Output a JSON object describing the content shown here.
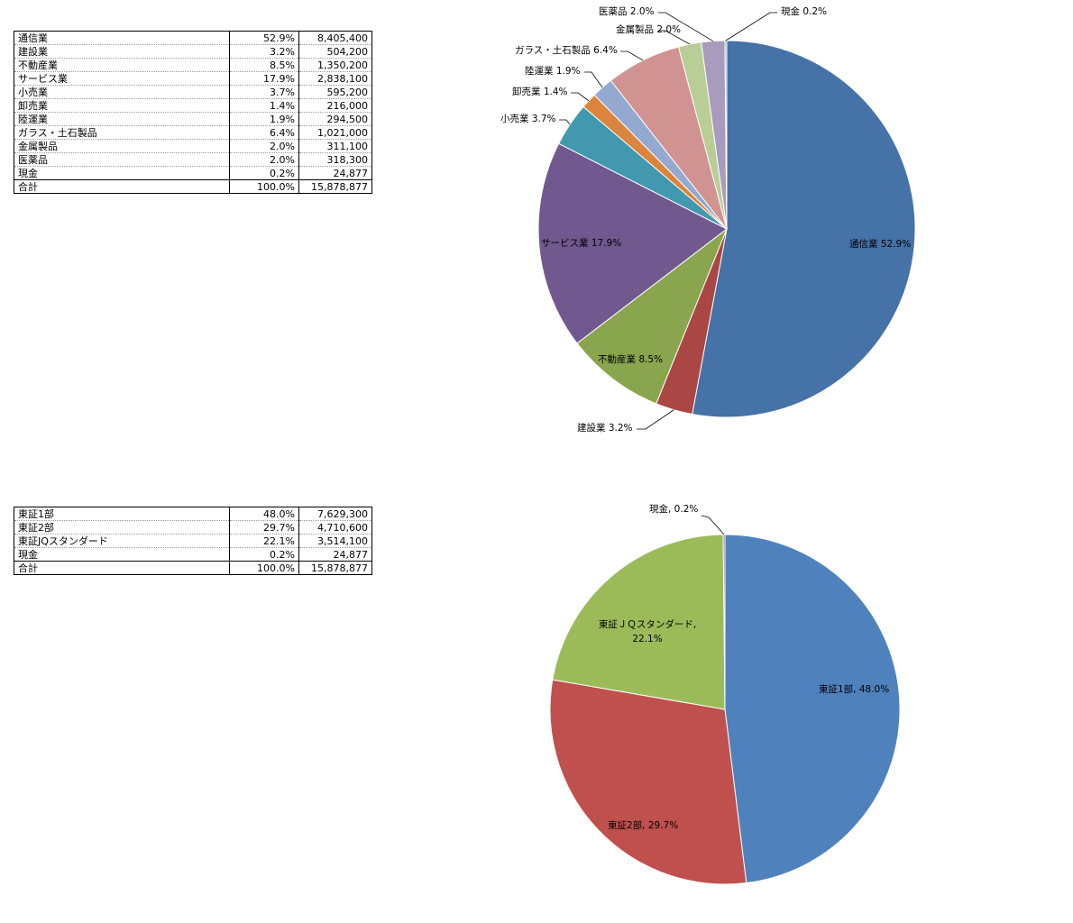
{
  "tables": [
    {
      "rows": [
        {
          "name": "通信業",
          "pct": "52.9%",
          "amount": "8,405,400"
        },
        {
          "name": "建設業",
          "pct": "3.2%",
          "amount": "504,200"
        },
        {
          "name": "不動産業",
          "pct": "8.5%",
          "amount": "1,350,200"
        },
        {
          "name": "サービス業",
          "pct": "17.9%",
          "amount": "2,838,100"
        },
        {
          "name": "小売業",
          "pct": "3.7%",
          "amount": "595,200"
        },
        {
          "name": "卸売業",
          "pct": "1.4%",
          "amount": "216,000"
        },
        {
          "name": "陸運業",
          "pct": "1.9%",
          "amount": "294,500"
        },
        {
          "name": "ガラス・土石製品",
          "pct": "6.4%",
          "amount": "1,021,000"
        },
        {
          "name": "金属製品",
          "pct": "2.0%",
          "amount": "311,100"
        },
        {
          "name": "医薬品",
          "pct": "2.0%",
          "amount": "318,300"
        },
        {
          "name": "現金",
          "pct": "0.2%",
          "amount": "24,877"
        }
      ],
      "total": {
        "name": "合計",
        "pct": "100.0%",
        "amount": "15,878,877"
      }
    },
    {
      "rows": [
        {
          "name": "東証1部",
          "pct": "48.0%",
          "amount": "7,629,300"
        },
        {
          "name": "東証2部",
          "pct": "29.7%",
          "amount": "4,710,600"
        },
        {
          "name": "東証JQスタンダード",
          "pct": "22.1%",
          "amount": "3,514,100"
        },
        {
          "name": "現金",
          "pct": "0.2%",
          "amount": "24,877"
        }
      ],
      "total": {
        "name": "合計",
        "pct": "100.0%",
        "amount": "15,878,877"
      }
    }
  ],
  "chart_data": [
    {
      "type": "pie",
      "categories": [
        "通信業",
        "建設業",
        "不動産業",
        "サービス業",
        "小売業",
        "卸売業",
        "陸運業",
        "ガラス・土石製品",
        "金属製品",
        "医薬品",
        "現金"
      ],
      "values": [
        8405400,
        504200,
        1350200,
        2838100,
        595200,
        216000,
        294500,
        1021000,
        311100,
        318300,
        24877
      ],
      "labels": [
        "通信業 52.9%",
        "建設業 3.2%",
        "不動産業 8.5%",
        "サービス業 17.9%",
        "小売業 3.7%",
        "卸売業 1.4%",
        "陸運業 1.9%",
        "ガラス・土石製品 6.4%",
        "金属製品 2.0%",
        "医薬品 2.0%",
        "現金 0.2%"
      ],
      "colors": [
        "#4572A7",
        "#AA4643",
        "#89A54E",
        "#71588F",
        "#4198AF",
        "#DB843D",
        "#93A9CF",
        "#D19392",
        "#B9CD96",
        "#A99BBD",
        "#80B5E0"
      ]
    },
    {
      "type": "pie",
      "categories": [
        "東証1部",
        "東証2部",
        "東証ＪＱスタンダード",
        "現金"
      ],
      "values": [
        7629300,
        4710600,
        3514100,
        24877
      ],
      "labels": [
        "東証1部, 48.0%",
        "東証2部, 29.7%",
        "東証ＪＱスタンダード, 22.1%",
        "現金, 0.2%"
      ],
      "colors": [
        "#4F81BD",
        "#C0504D",
        "#9BBB59",
        "#8064A2"
      ]
    }
  ]
}
